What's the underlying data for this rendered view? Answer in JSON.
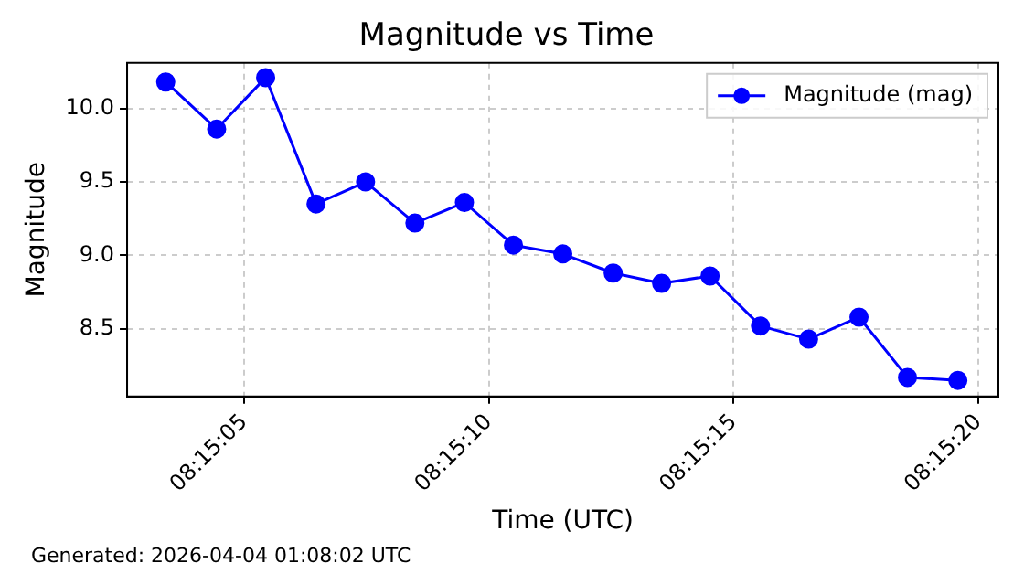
{
  "chart_data": {
    "type": "line",
    "title": "Magnitude vs Time",
    "xlabel": "Time (UTC)",
    "ylabel": "Magnitude",
    "annotations": [
      "Generated: 2026-04-04 01:08:02 UTC"
    ],
    "x": [
      8.250944,
      8.251233,
      8.251511,
      8.251797,
      8.252078,
      8.252358,
      8.252639,
      8.252917,
      8.253197,
      8.253483,
      8.253758,
      8.254033,
      8.254319,
      8.254592,
      8.254878,
      8.255153,
      8.255439
    ],
    "series": [
      {
        "name": "Magnitude (mag)",
        "color": "#0000ff",
        "values": [
          10.18,
          9.86,
          10.21,
          9.35,
          9.5,
          9.22,
          9.36,
          9.07,
          9.01,
          8.88,
          8.81,
          8.86,
          8.52,
          8.43,
          8.58,
          8.17,
          8.15
        ]
      }
    ],
    "xlim": [
      8.250725,
      8.255669
    ],
    "xticks": [
      {
        "value": 8.251389,
        "label": "08:15:05"
      },
      {
        "value": 8.252778,
        "label": "08:15:10"
      },
      {
        "value": 8.254167,
        "label": "08:15:15"
      },
      {
        "value": 8.255556,
        "label": "08:15:20"
      }
    ],
    "ylim": [
      8.04,
      10.31
    ],
    "yticks": [
      {
        "value": 8.5,
        "label": "8.5"
      },
      {
        "value": 9.0,
        "label": "9.0"
      },
      {
        "value": 9.5,
        "label": "9.5"
      },
      {
        "value": 10.0,
        "label": "10.0"
      }
    ],
    "grid": true,
    "legend": "top right",
    "marker": "circle",
    "line_style": "solid"
  }
}
